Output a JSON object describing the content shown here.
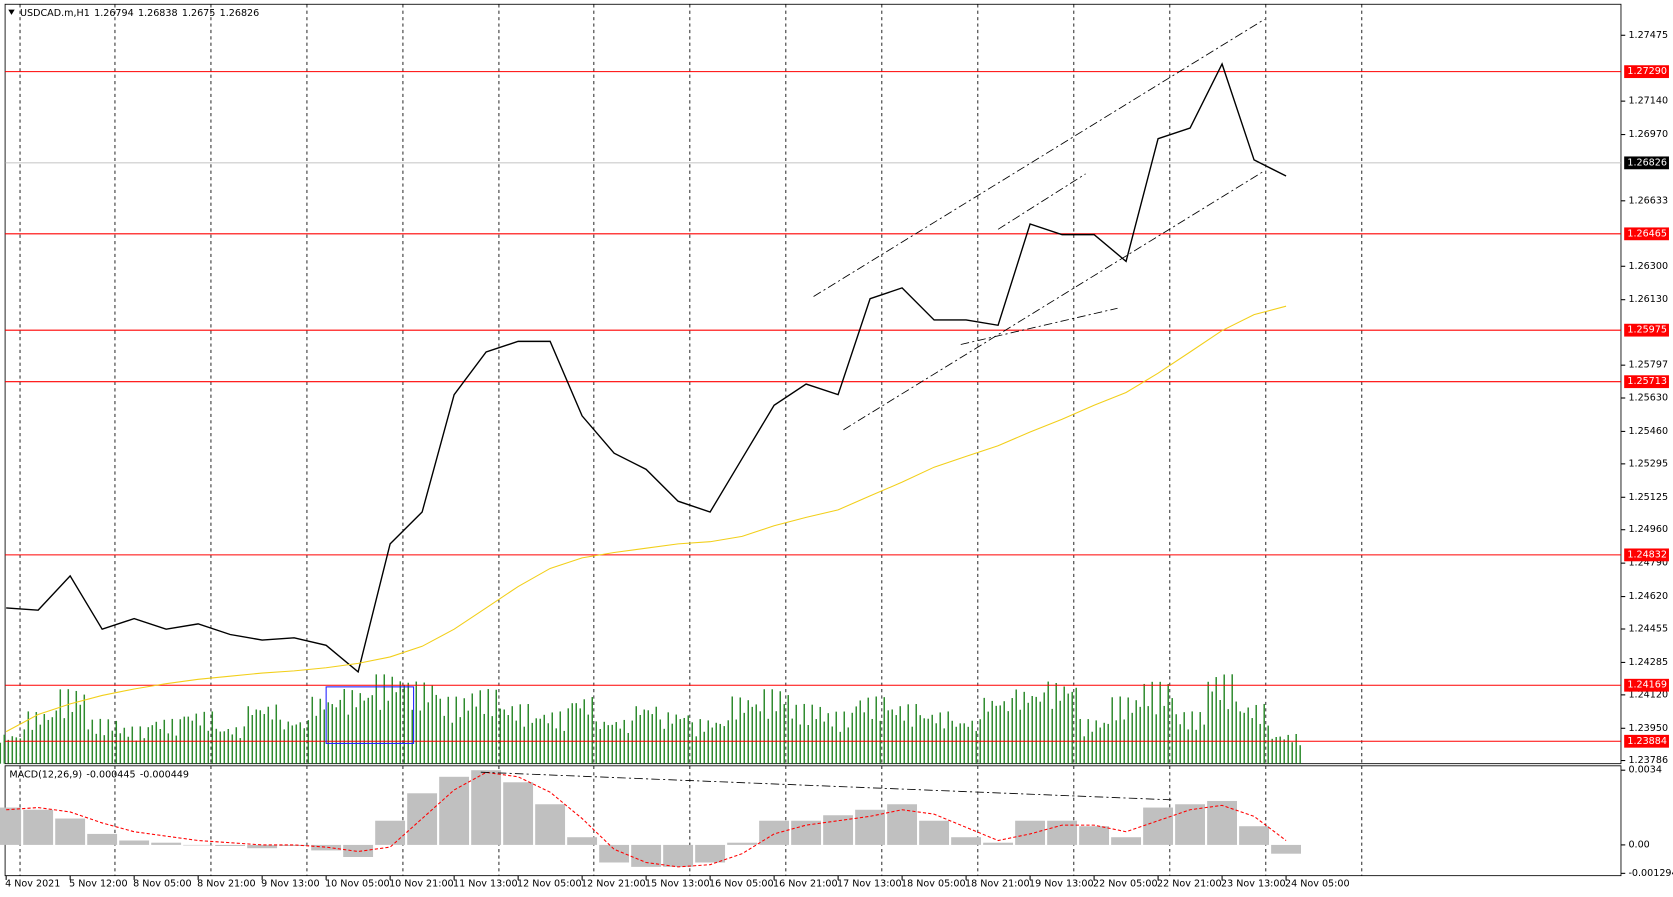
{
  "chart_data": [
    {
      "type": "line",
      "title": "USDCAD.m,H1",
      "ohlc": [
        1.26794,
        1.26838,
        1.2675,
        1.26826
      ],
      "categories": [
        "4 Nov 2021",
        null,
        "5 Nov 12:00",
        null,
        "8 Nov 05:00",
        null,
        "8 Nov 21:00",
        null,
        "9 Nov 13:00",
        null,
        "10 Nov 05:00",
        null,
        "10 Nov 21:00",
        null,
        "11 Nov 13:00",
        null,
        "12 Nov 05:00",
        null,
        "12 Nov 21:00",
        null,
        "15 Nov 13:00",
        null,
        "16 Nov 05:00",
        null,
        "16 Nov 21:00",
        null,
        "17 Nov 13:00",
        null,
        "18 Nov 05:00",
        null,
        "18 Nov 21:00",
        null,
        "19 Nov 13:00",
        null,
        "22 Nov 05:00",
        null,
        "22 Nov 21:00",
        null,
        "23 Nov 13:00",
        null,
        "24 Nov 05:00"
      ],
      "ylim": [
        1.2377,
        1.27611
      ],
      "yticks": [
        {
          "value": 1.27475,
          "label": "1.27475"
        },
        {
          "value": 1.2714,
          "label": "1.27140"
        },
        {
          "value": 1.2697,
          "label": "1.26970"
        },
        {
          "value": 1.26633,
          "label": "1.26633"
        },
        {
          "value": 1.263,
          "label": "1.26300"
        },
        {
          "value": 1.2613,
          "label": "1.26130"
        },
        {
          "value": 1.25797,
          "label": "1.25797"
        },
        {
          "value": 1.2563,
          "label": "1.25630"
        },
        {
          "value": 1.2546,
          "label": "1.25460"
        },
        {
          "value": 1.25295,
          "label": "1.25295"
        },
        {
          "value": 1.25125,
          "label": "1.25125"
        },
        {
          "value": 1.2496,
          "label": "1.24960"
        },
        {
          "value": 1.2479,
          "label": "1.24790"
        },
        {
          "value": 1.2462,
          "label": "1.24620"
        },
        {
          "value": 1.24455,
          "label": "1.24455"
        },
        {
          "value": 1.24285,
          "label": "1.24285"
        },
        {
          "value": 1.2412,
          "label": "1.24120"
        },
        {
          "value": 1.2395,
          "label": "1.23950"
        },
        {
          "value": 1.23786,
          "label": "1.23786"
        }
      ],
      "levels": [
        {
          "value": 1.2729,
          "label": "1.27290"
        },
        {
          "value": 1.26465,
          "label": "1.26465"
        },
        {
          "value": 1.25975,
          "label": "1.25975"
        },
        {
          "value": 1.25713,
          "label": "1.25713"
        },
        {
          "value": 1.24832,
          "label": "1.24832"
        },
        {
          "value": 1.24169,
          "label": "1.24169"
        },
        {
          "value": 1.23884,
          "label": "1.23884"
        }
      ],
      "level_color": "#ff0000",
      "current": {
        "value": 1.26826,
        "label": "1.26826"
      },
      "current_color": "#b0b0b0",
      "series": [
        {
          "color": "#000000",
          "values": [
            1.24562,
            1.24551,
            1.24725,
            1.24454,
            1.24508,
            1.24454,
            1.24481,
            1.24427,
            1.24399,
            1.2441,
            1.24372,
            1.24237,
            1.24888,
            1.2505,
            1.25647,
            1.25864,
            1.25918,
            1.25918,
            1.25539,
            1.25349,
            1.25267,
            1.25105,
            1.2505,
            1.25322,
            1.25593,
            1.25701,
            1.25647,
            1.26135,
            1.2619,
            1.26027,
            1.26027,
            1.26,
            1.26515,
            1.26461,
            1.26461,
            1.26325,
            1.26949,
            1.27003,
            1.27329,
            1.26841,
            1.26759
          ]
        },
        {
          "color": "#f2cf1a",
          "values": [
            1.23933,
            1.2402,
            1.24074,
            1.24117,
            1.2415,
            1.24177,
            1.24199,
            1.24215,
            1.24231,
            1.24242,
            1.24258,
            1.2428,
            1.24313,
            1.24367,
            1.24454,
            1.24562,
            1.24671,
            1.24763,
            1.24817,
            1.24844,
            1.24866,
            1.24888,
            1.24899,
            1.24926,
            1.2498,
            1.25023,
            1.25061,
            1.25132,
            1.25202,
            1.25278,
            1.25333,
            1.25387,
            1.25457,
            1.25522,
            1.25593,
            1.25658,
            1.25756,
            1.25864,
            1.25973,
            1.26054,
            1.26097
          ]
        }
      ],
      "volume": {
        "color": "#2e8b2e",
        "values": [
          20,
          35,
          50,
          30,
          25,
          30,
          35,
          25,
          40,
          30,
          45,
          50,
          60,
          55,
          45,
          50,
          40,
          35,
          45,
          30,
          40,
          35,
          30,
          45,
          50,
          40,
          35,
          45,
          40,
          35,
          30,
          45,
          50,
          55,
          30,
          45,
          55,
          35,
          60,
          40,
          20
        ]
      }
    },
    {
      "type": "macd",
      "title": "MACD(12,26,9)",
      "readings": [
        -0.000445,
        -0.000449
      ],
      "ylim": [
        -0.0014,
        0.0036
      ],
      "yticks": [
        {
          "value": 0.0034,
          "label": "0.0034"
        },
        {
          "value": 0,
          "label": "0.00"
        },
        {
          "value": -0.001294,
          "label": "-0.001294"
        }
      ],
      "histogram": {
        "color": "#c0c0c0",
        "values": [
          0.0017,
          0.0016,
          0.0012,
          0.0005,
          0.0002,
          0.0001,
          0,
          -5e-05,
          -0.00015,
          -5e-05,
          -0.00025,
          -0.00055,
          0.0011,
          0.00235,
          0.0031,
          0.0034,
          0.00285,
          0.00185,
          0.00035,
          -0.0008,
          -0.001,
          -0.001,
          -0.0008,
          0.0001,
          0.0011,
          0.0011,
          0.00135,
          0.0016,
          0.00185,
          0.0011,
          0.00035,
          0.0001,
          0.0011,
          0.0011,
          0.00085,
          0.00035,
          0.0017,
          0.00185,
          0.002,
          0.00085,
          -0.0004
        ]
      },
      "signal": {
        "color": "#ff0000",
        "values": [
          0.0016,
          0.0017,
          0.0015,
          0.001,
          0.0006,
          0.0004,
          0.0002,
          0.0001,
          0,
          0,
          -0.0001,
          -0.0003,
          -0.0001,
          0.0012,
          0.0025,
          0.0033,
          0.0031,
          0.0024,
          0.0012,
          -0.0002,
          -0.0008,
          -0.001,
          -0.0009,
          -0.0004,
          0.0005,
          0.0009,
          0.0011,
          0.0013,
          0.0016,
          0.0014,
          0.0008,
          0.0002,
          0.0005,
          0.0009,
          0.0009,
          0.0006,
          0.0011,
          0.0016,
          0.0018,
          0.0013,
          0.0002
        ]
      }
    }
  ]
}
